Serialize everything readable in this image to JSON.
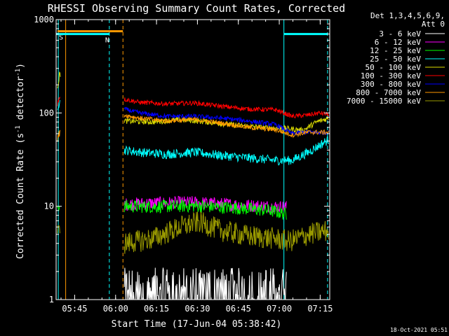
{
  "chart_data": {
    "type": "line",
    "title": "RHESSI Observing Summary Count Rates, Corrected",
    "xlabel": "Start Time (17-Jun-04 05:38:42)",
    "ylabel_parts": [
      "Corrected Count Rate (s",
      "-1",
      " detector",
      "-1",
      ")"
    ],
    "yscale": "log",
    "ylim": [
      1,
      1000
    ],
    "xlim_minutes": [
      -0.5,
      99.8
    ],
    "xticks": [
      {
        "label": "05:45",
        "t": 6.3
      },
      {
        "label": "06:00",
        "t": 21.3
      },
      {
        "label": "06:15",
        "t": 36.3
      },
      {
        "label": "06:30",
        "t": 51.3
      },
      {
        "label": "06:45",
        "t": 66.3
      },
      {
        "label": "07:00",
        "t": 81.3
      },
      {
        "label": "07:15",
        "t": 96.3
      }
    ],
    "yticks": [
      {
        "label": "1",
        "v": 1
      },
      {
        "label": "10",
        "v": 10
      },
      {
        "label": "100",
        "v": 100
      },
      {
        "label": "1000",
        "v": 1000
      }
    ],
    "legend": {
      "position": "right",
      "header": [
        "Det 1,3,4,5,6,9,",
        "Att 0"
      ],
      "entries": [
        {
          "label": "3 - 6 keV",
          "color": "#ffffff"
        },
        {
          "label": "6 - 12 keV",
          "color": "#ff00ff"
        },
        {
          "label": "12 - 25 keV",
          "color": "#00ff00"
        },
        {
          "label": "25 - 50 keV",
          "color": "#00ffff"
        },
        {
          "label": "50 - 100 keV",
          "color": "#dddd00"
        },
        {
          "label": "100 - 300 keV",
          "color": "#ff0000"
        },
        {
          "label": "300 - 800 keV",
          "color": "#0000ff"
        },
        {
          "label": "800 - 7000 keV",
          "color": "#ff9900"
        },
        {
          "label": "7000 - 15000 keV",
          "color": "#999900"
        }
      ]
    },
    "series": [
      {
        "name": "3 - 6 keV",
        "color": "#ffffff",
        "segments": [
          {
            "t0": 24.5,
            "t1": 84.0,
            "points": [
              [
                24.5,
                1.8
              ],
              [
                40,
                1.9
              ],
              [
                50,
                2.0
              ],
              [
                60,
                1.9
              ],
              [
                70,
                1.8
              ],
              [
                84,
                1.8
              ]
            ],
            "noise": 0.6,
            "noisy_floor": true
          }
        ]
      },
      {
        "name": "6 - 12 keV",
        "color": "#ff00ff",
        "segments": [
          {
            "t0": 24.5,
            "t1": 84.0,
            "points": [
              [
                24.5,
                10.5
              ],
              [
                35,
                10.8
              ],
              [
                50,
                11.0
              ],
              [
                60,
                10.6
              ],
              [
                70,
                10.2
              ],
              [
                84,
                9.8
              ]
            ],
            "noise": 0.07
          }
        ]
      },
      {
        "name": "12 - 25 keV",
        "color": "#00ff00",
        "segments": [
          {
            "t0": 0.0,
            "t1": 1.0,
            "points": [
              [
                0,
                9.8
              ],
              [
                1,
                10.0
              ]
            ],
            "noise": 0.05
          },
          {
            "t0": 24.5,
            "t1": 84.0,
            "points": [
              [
                24.5,
                10.0
              ],
              [
                35,
                9.9
              ],
              [
                50,
                10.1
              ],
              [
                65,
                9.6
              ],
              [
                78,
                9.0
              ],
              [
                84,
                8.2
              ]
            ],
            "noise": 0.07
          }
        ]
      },
      {
        "name": "25 - 50 keV",
        "color": "#00ffff",
        "segments": [
          {
            "t0": 0.0,
            "t1": 1.0,
            "points": [
              [
                0,
                120
              ],
              [
                1,
                130
              ]
            ],
            "noise": 0.05
          },
          {
            "t0": 24.5,
            "t1": 99.5,
            "points": [
              [
                24.5,
                40
              ],
              [
                30,
                38
              ],
              [
                40,
                36
              ],
              [
                50,
                38
              ],
              [
                60,
                35
              ],
              [
                70,
                33
              ],
              [
                80,
                31
              ],
              [
                86,
                31
              ],
              [
                92,
                38
              ],
              [
                99.5,
                52
              ]
            ],
            "noise": 0.05
          }
        ]
      },
      {
        "name": "50 - 100 keV",
        "color": "#dddd00",
        "segments": [
          {
            "t0": 0.0,
            "t1": 1.2,
            "points": [
              [
                0,
                200
              ],
              [
                1.2,
                280
              ]
            ],
            "noise": 0.05
          },
          {
            "t0": 24.5,
            "t1": 99.5,
            "points": [
              [
                24.5,
                82
              ],
              [
                35,
                80
              ],
              [
                45,
                85
              ],
              [
                55,
                80
              ],
              [
                65,
                74
              ],
              [
                75,
                70
              ],
              [
                84,
                68
              ],
              [
                90,
                65
              ],
              [
                95,
                80
              ],
              [
                99.5,
                88
              ]
            ],
            "noise": 0.03
          }
        ]
      },
      {
        "name": "100 - 300 keV",
        "color": "#ff0000",
        "segments": [
          {
            "t0": 0.0,
            "t1": 1.0,
            "points": [
              [
                0,
                130
              ],
              [
                1,
                160
              ]
            ],
            "noise": 0.05
          },
          {
            "t0": 24.5,
            "t1": 99.5,
            "points": [
              [
                24.5,
                140
              ],
              [
                30,
                130
              ],
              [
                40,
                125
              ],
              [
                50,
                128
              ],
              [
                60,
                118
              ],
              [
                70,
                110
              ],
              [
                80,
                108
              ],
              [
                86,
                92
              ],
              [
                92,
                95
              ],
              [
                96,
                100
              ],
              [
                99.5,
                96
              ]
            ],
            "noise": 0.025
          }
        ]
      },
      {
        "name": "300 - 800 keV",
        "color": "#0000ff",
        "segments": [
          {
            "t0": 24.5,
            "t1": 99.5,
            "points": [
              [
                24.5,
                110
              ],
              [
                30,
                100
              ],
              [
                40,
                92
              ],
              [
                50,
                92
              ],
              [
                60,
                88
              ],
              [
                70,
                82
              ],
              [
                80,
                75
              ],
              [
                86,
                60
              ],
              [
                90,
                62
              ],
              [
                99.5,
                62
              ]
            ],
            "noise": 0.025
          }
        ]
      },
      {
        "name": "800 - 7000 keV",
        "color": "#ff9900",
        "segments": [
          {
            "t0": 0.0,
            "t1": 1.0,
            "points": [
              [
                0,
                55
              ],
              [
                1,
                60
              ]
            ],
            "noise": 0.05
          },
          {
            "t0": 24.5,
            "t1": 99.5,
            "points": [
              [
                24.5,
                95
              ],
              [
                30,
                88
              ],
              [
                40,
                82
              ],
              [
                50,
                85
              ],
              [
                60,
                78
              ],
              [
                70,
                70
              ],
              [
                80,
                66
              ],
              [
                86,
                58
              ],
              [
                92,
                62
              ],
              [
                99.5,
                62
              ]
            ],
            "noise": 0.025
          }
        ]
      },
      {
        "name": "7000 - 15000 keV",
        "color": "#999900",
        "segments": [
          {
            "t0": 0.0,
            "t1": 1.0,
            "points": [
              [
                0,
                5.5
              ],
              [
                1,
                5.8
              ]
            ],
            "noise": 0.06
          },
          {
            "t0": 24.5,
            "t1": 99.5,
            "points": [
              [
                24.5,
                4.0
              ],
              [
                35,
                4.5
              ],
              [
                45,
                6.0
              ],
              [
                52,
                6.8
              ],
              [
                60,
                5.5
              ],
              [
                70,
                4.8
              ],
              [
                80,
                4.5
              ],
              [
                85,
                4.2
              ],
              [
                92,
                5.0
              ],
              [
                99.5,
                5.5
              ]
            ],
            "noise": 0.12
          }
        ]
      }
    ],
    "flags": [
      {
        "label": "S",
        "color": "#ff9900",
        "value": 750,
        "t0": 0.0,
        "t1": 24.0
      },
      {
        "label": "N",
        "color": "#00ffff",
        "value": 700,
        "t0": -0.5,
        "t1": 19.0
      }
    ],
    "flag_lines": [
      {
        "t": 0.3,
        "color": "#00ffff",
        "dashed": false
      },
      {
        "t": 3.0,
        "color": "#ff9900",
        "dashed": false
      },
      {
        "t": 19.0,
        "color": "#00ffff",
        "dashed": true
      },
      {
        "t": 24.0,
        "color": "#ff9900",
        "dashed": true
      },
      {
        "t": 83.0,
        "color": "#00ffff",
        "dashed": false
      },
      {
        "t": 99.0,
        "color": "#00ffff",
        "dashed": true
      }
    ],
    "flag_bars": [
      {
        "color": "#00ffff",
        "value": 700,
        "t0": 83.0,
        "t1": 99.0
      }
    ]
  },
  "timestamp": "18-Oct-2021 05:51"
}
